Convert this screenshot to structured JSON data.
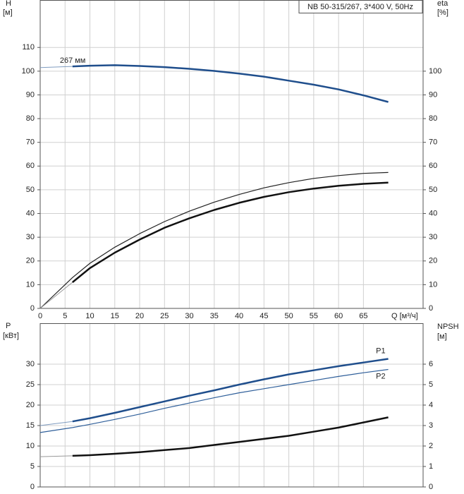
{
  "chart_data": [
    {
      "type": "line",
      "title": "NB 50-315/267, 3*400 V, 50Hz",
      "ylabel": "H",
      "yunit": "[м]",
      "y2label": "eta",
      "y2unit": "[%]",
      "xlabel": "Q [м³/ч]",
      "x": [
        0,
        6.5,
        10,
        15,
        20,
        25,
        30,
        35,
        40,
        45,
        50,
        55,
        60,
        65,
        70
      ],
      "xlim": [
        0,
        77
      ],
      "xticks": [
        0,
        5,
        10,
        15,
        20,
        25,
        30,
        35,
        40,
        45,
        50,
        55,
        60,
        65
      ],
      "ylim": [
        0,
        130
      ],
      "yticks": [
        0,
        10,
        20,
        30,
        40,
        50,
        60,
        70,
        80,
        90,
        100,
        110
      ],
      "y2lim": [
        0,
        130
      ],
      "y2ticks": [
        0,
        10,
        20,
        30,
        40,
        50,
        60,
        70,
        80,
        90,
        100
      ],
      "grid": true,
      "series": [
        {
          "name": "267 мм",
          "color": "#1f4e8c",
          "width": 2.5,
          "values": [
            null,
            102,
            102.3,
            102.5,
            102.2,
            101.7,
            101,
            100.1,
            99,
            97.7,
            96,
            94.3,
            92.3,
            89.8,
            87
          ]
        },
        {
          "color": "#7f9cc0",
          "width": 1,
          "values": [
            101.5,
            102,
            null,
            null,
            null,
            null,
            null,
            null,
            null,
            null,
            null,
            null,
            null,
            null,
            null
          ]
        },
        {
          "color": "#222222",
          "width": 1.2,
          "axis": "y2",
          "values": [
            0,
            13,
            19,
            25.8,
            31.5,
            36.6,
            41,
            44.8,
            48,
            50.8,
            53,
            54.8,
            56,
            56.9,
            57.3
          ]
        },
        {
          "color": "#111111",
          "width": 2.5,
          "axis": "y2",
          "values": [
            null,
            11,
            17,
            23.5,
            29,
            34,
            38,
            41.5,
            44.5,
            47,
            49,
            50.5,
            51.7,
            52.5,
            53
          ]
        },
        {
          "color": "#999999",
          "width": 1,
          "axis": "y2",
          "values": [
            0,
            11,
            null,
            null,
            null,
            null,
            null,
            null,
            null,
            null,
            null,
            null,
            null,
            null,
            null
          ]
        }
      ]
    },
    {
      "type": "line",
      "ylabel": "P",
      "yunit": "[кВт]",
      "y2label": "NPSH",
      "y2unit": "[м]",
      "x": [
        0,
        6.5,
        10,
        15,
        20,
        25,
        30,
        35,
        40,
        45,
        50,
        55,
        60,
        65,
        70
      ],
      "xlim": [
        0,
        77
      ],
      "ylim": [
        0,
        40
      ],
      "yticks": [
        0,
        5,
        10,
        15,
        20,
        25,
        30
      ],
      "y2lim": [
        0,
        8
      ],
      "y2ticks": [
        0,
        1,
        2,
        3,
        4,
        5,
        6
      ],
      "grid": true,
      "series": [
        {
          "name": "P1",
          "color": "#1f4e8c",
          "width": 2.5,
          "values": [
            null,
            16,
            16.8,
            18.1,
            19.5,
            20.9,
            22.3,
            23.6,
            25,
            26.3,
            27.5,
            28.5,
            29.5,
            30.4,
            31.3
          ]
        },
        {
          "color": "#7f9cc0",
          "width": 1,
          "values": [
            15,
            16,
            null,
            null,
            null,
            null,
            null,
            null,
            null,
            null,
            null,
            null,
            null,
            null,
            null
          ]
        },
        {
          "name": "P2",
          "color": "#2f5f9a",
          "width": 1.2,
          "values": [
            13.3,
            14.5,
            15.3,
            16.5,
            17.8,
            19.2,
            20.5,
            21.8,
            23,
            24,
            25,
            26,
            27,
            27.9,
            28.7
          ]
        },
        {
          "color": "#111111",
          "width": 2.5,
          "axis": "y2",
          "values": [
            null,
            1.52,
            1.55,
            1.62,
            1.7,
            1.8,
            1.9,
            2.05,
            2.2,
            2.35,
            2.5,
            2.7,
            2.9,
            3.15,
            3.4
          ]
        },
        {
          "color": "#999999",
          "width": 1,
          "axis": "y2",
          "values": [
            1.48,
            1.52,
            null,
            null,
            null,
            null,
            null,
            null,
            null,
            null,
            null,
            null,
            null,
            null,
            null
          ]
        }
      ]
    }
  ]
}
